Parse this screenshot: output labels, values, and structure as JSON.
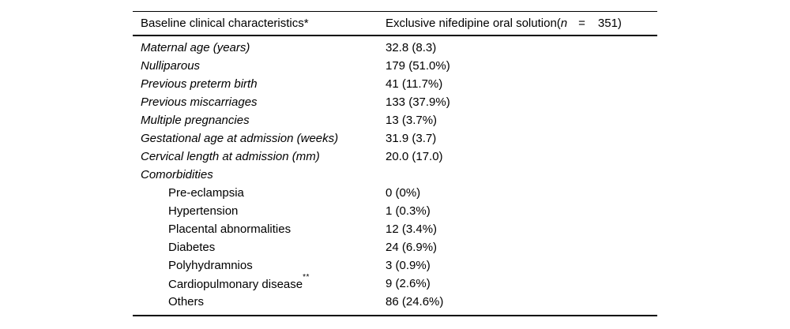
{
  "table": {
    "header": {
      "col1": "Baseline clinical characteristics*",
      "col2_prefix": "Exclusive nifedipine oral solution(",
      "col2_n": "n",
      "col2_eq": "=",
      "col2_suffix": "351)"
    },
    "rows": [
      {
        "label": "Maternal age (years)",
        "value": "32.8 (8.3)"
      },
      {
        "label": "Nulliparous",
        "value": "179 (51.0%)"
      },
      {
        "label": "Previous preterm birth",
        "value": "41 (11.7%)"
      },
      {
        "label": "Previous miscarriages",
        "value": "133 (37.9%)"
      },
      {
        "label": "Multiple pregnancies",
        "value": "13 (3.7%)"
      },
      {
        "label": "Gestational age at admission (weeks)",
        "value": "31.9 (3.7)"
      },
      {
        "label": "Cervical length at admission (mm)",
        "value": "20.0 (17.0)"
      },
      {
        "label": "Comorbidities",
        "value": ""
      },
      {
        "label": "Pre-eclampsia",
        "value": "0 (0%)"
      },
      {
        "label": "Hypertension",
        "value": "1 (0.3%)"
      },
      {
        "label": "Placental abnormalities",
        "value": "12 (3.4%)"
      },
      {
        "label": "Diabetes",
        "value": "24 (6.9%)"
      },
      {
        "label": "Polyhydramnios",
        "value": "3 (0.9%)"
      },
      {
        "label": "Cardiopulmonary disease",
        "sup": "**",
        "value": "9 (2.6%)"
      },
      {
        "label": "Others",
        "value": "86 (24.6%)"
      }
    ]
  }
}
